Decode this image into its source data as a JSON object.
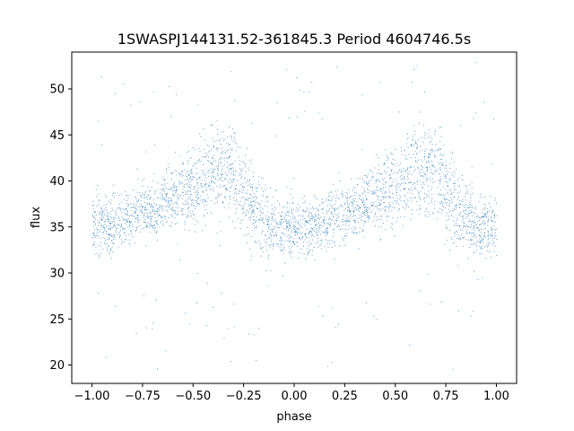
{
  "chart_data": {
    "type": "scatter",
    "title": "1SWASPJ144131.52-361845.3 Period 4604746.5s",
    "xlabel": "phase",
    "ylabel": "flux",
    "xlim": [
      -1.1,
      1.1
    ],
    "ylim": [
      18,
      54
    ],
    "xticks": [
      -1.0,
      -0.75,
      -0.5,
      -0.25,
      0.0,
      0.25,
      0.5,
      0.75,
      1.0
    ],
    "xtick_labels": [
      "−1.00",
      "−0.75",
      "−0.50",
      "−0.25",
      "0.00",
      "0.25",
      "0.50",
      "0.75",
      "1.00"
    ],
    "yticks": [
      20,
      25,
      30,
      35,
      40,
      45,
      50
    ],
    "ytick_labels": [
      "20",
      "25",
      "30",
      "35",
      "40",
      "45",
      "50"
    ],
    "grid": false,
    "marker_color": "#1f77b4",
    "series": [
      {
        "phase_range": [
          -1.0,
          1.0
        ],
        "profile": [
          {
            "phase": -1.0,
            "low": 31,
            "high": 39.5
          },
          {
            "phase": -0.9,
            "low": 31,
            "high": 39.5
          },
          {
            "phase": -0.8,
            "low": 33,
            "high": 40
          },
          {
            "phase": -0.7,
            "low": 33,
            "high": 41
          },
          {
            "phase": -0.6,
            "low": 33.5,
            "high": 43
          },
          {
            "phase": -0.5,
            "low": 34,
            "high": 45
          },
          {
            "phase": -0.4,
            "low": 35,
            "high": 47
          },
          {
            "phase": -0.3,
            "low": 35,
            "high": 47.5
          },
          {
            "phase": -0.2,
            "low": 31,
            "high": 43
          },
          {
            "phase": -0.1,
            "low": 31,
            "high": 39
          },
          {
            "phase": 0.0,
            "low": 31,
            "high": 38.5
          },
          {
            "phase": 0.1,
            "low": 31,
            "high": 39.5
          },
          {
            "phase": 0.2,
            "low": 32,
            "high": 40
          },
          {
            "phase": 0.3,
            "low": 33,
            "high": 41
          },
          {
            "phase": 0.4,
            "low": 33.5,
            "high": 43
          },
          {
            "phase": 0.5,
            "low": 34,
            "high": 45
          },
          {
            "phase": 0.6,
            "low": 35,
            "high": 47
          },
          {
            "phase": 0.7,
            "low": 35,
            "high": 47.5
          },
          {
            "phase": 0.8,
            "low": 31,
            "high": 43
          },
          {
            "phase": 0.9,
            "low": 31,
            "high": 39
          },
          {
            "phase": 1.0,
            "low": 31,
            "high": 39
          }
        ],
        "outlier_range": [
          19.5,
          53
        ]
      }
    ]
  }
}
